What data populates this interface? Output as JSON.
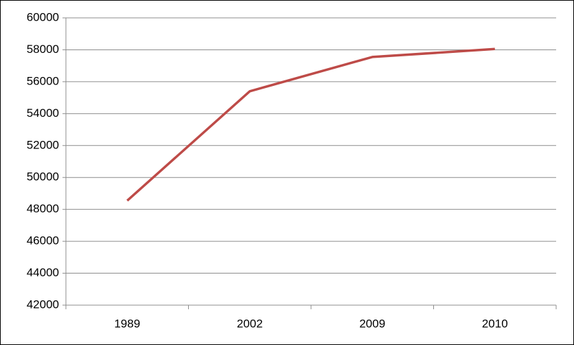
{
  "chart_data": {
    "type": "line",
    "categories": [
      "1989",
      "2002",
      "2009",
      "2010"
    ],
    "series": [
      {
        "color": "#be4b48",
        "values": [
          48550,
          55400,
          57550,
          58050
        ]
      }
    ],
    "ylim": [
      42000,
      60000
    ],
    "yticks": [
      42000,
      44000,
      46000,
      48000,
      50000,
      52000,
      54000,
      56000,
      58000,
      60000
    ],
    "grid": true
  }
}
